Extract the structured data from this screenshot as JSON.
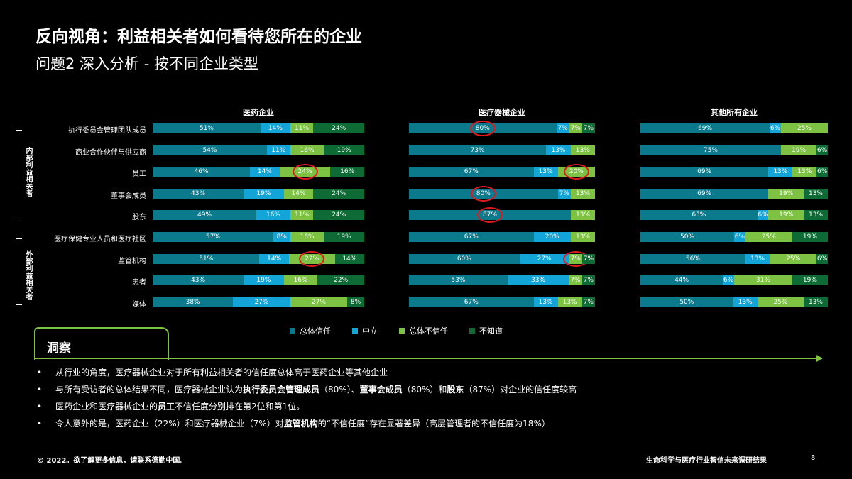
{
  "title": "反向视角：利益相关者如何看待您所在的企业",
  "subtitle": "问题2 深入分析 - 按不同企业类型",
  "colors": {
    "trust": "#0b7a8c",
    "neutral": "#13a4d8",
    "distrust": "#7dc242",
    "unknown": "#0f6b36",
    "highlight": "#e0191f"
  },
  "groups": [
    "内部利益相关者",
    "外部利益相关者"
  ],
  "chart_data": {
    "type": "bar",
    "stacked": true,
    "orientation": "horizontal",
    "categories": [
      "执行委员会管理团队成员",
      "商业合作伙伴与供应商",
      "员工",
      "董事会成员",
      "股东",
      "医疗保健专业人员和医疗社区",
      "监管机构",
      "患者",
      "媒体"
    ],
    "legend": [
      "总体信任",
      "中立",
      "总体不信任",
      "不知道"
    ],
    "legend_position": "bottom",
    "panels": [
      {
        "title": "医药企业",
        "values": [
          {
            "trust": 51,
            "neutral": 14,
            "distrust": 11,
            "unknown": 24
          },
          {
            "trust": 54,
            "neutral": 11,
            "distrust": 16,
            "unknown": 19
          },
          {
            "trust": 46,
            "neutral": 14,
            "distrust": 24,
            "unknown": 16,
            "hl": "distrust"
          },
          {
            "trust": 43,
            "neutral": 19,
            "distrust": 14,
            "unknown": 24
          },
          {
            "trust": 49,
            "neutral": 16,
            "distrust": 11,
            "unknown": 24
          },
          {
            "trust": 57,
            "neutral": 8,
            "distrust": 16,
            "unknown": 19
          },
          {
            "trust": 51,
            "neutral": 14,
            "distrust": 22,
            "unknown": 14,
            "hl": "distrust"
          },
          {
            "trust": 43,
            "neutral": 19,
            "distrust": 16,
            "unknown": 22
          },
          {
            "trust": 38,
            "neutral": 27,
            "distrust": 27,
            "unknown": 8
          }
        ]
      },
      {
        "title": "医疗器械企业",
        "values": [
          {
            "trust": 80,
            "neutral": 7,
            "distrust": 7,
            "unknown": 7,
            "hl": "trust"
          },
          {
            "trust": 73,
            "neutral": 13,
            "distrust": 13,
            "unknown": 0
          },
          {
            "trust": 67,
            "neutral": 13,
            "distrust": 20,
            "unknown": 0,
            "hl": "distrust"
          },
          {
            "trust": 80,
            "neutral": 7,
            "distrust": 13,
            "unknown": 0,
            "hl": "trust"
          },
          {
            "trust": 87,
            "neutral": 0,
            "distrust": 13,
            "unknown": 0,
            "hl": "trust"
          },
          {
            "trust": 67,
            "neutral": 20,
            "distrust": 13,
            "unknown": 0
          },
          {
            "trust": 60,
            "neutral": 27,
            "distrust": 7,
            "unknown": 7,
            "hl": "distrust"
          },
          {
            "trust": 53,
            "neutral": 33,
            "distrust": 7,
            "unknown": 7
          },
          {
            "trust": 67,
            "neutral": 13,
            "distrust": 13,
            "unknown": 7
          }
        ]
      },
      {
        "title": "其他所有企业",
        "values": [
          {
            "trust": 69,
            "neutral": 6,
            "distrust": 25,
            "unknown": 0
          },
          {
            "trust": 75,
            "neutral": 0,
            "distrust": 19,
            "unknown": 6
          },
          {
            "trust": 69,
            "neutral": 13,
            "distrust": 13,
            "unknown": 6
          },
          {
            "trust": 69,
            "neutral": 0,
            "distrust": 19,
            "unknown": 13
          },
          {
            "trust": 63,
            "neutral": 6,
            "distrust": 19,
            "unknown": 13
          },
          {
            "trust": 50,
            "neutral": 6,
            "distrust": 25,
            "unknown": 19
          },
          {
            "trust": 56,
            "neutral": 13,
            "distrust": 25,
            "unknown": 6
          },
          {
            "trust": 44,
            "neutral": 6,
            "distrust": 31,
            "unknown": 19
          },
          {
            "trust": 50,
            "neutral": 13,
            "distrust": 25,
            "unknown": 13
          }
        ]
      }
    ]
  },
  "insights": {
    "title": "洞察",
    "bullets": [
      [
        {
          "t": "从行业的角度，医疗器械企业对于所有利益相关者的信任度总体高于医药企业等其他企业"
        }
      ],
      [
        {
          "t": "与所有受访者的总体结果不同，医疗器械企业认为"
        },
        {
          "t": "执行委员会管理成员",
          "b": true
        },
        {
          "t": "（80%）、"
        },
        {
          "t": "董事会成员",
          "b": true
        },
        {
          "t": "（80%）和"
        },
        {
          "t": "股东",
          "b": true
        },
        {
          "t": "（87%）对企业的信任度较高"
        }
      ],
      [
        {
          "t": "医药企业和医疗器械企业的"
        },
        {
          "t": "员工",
          "b": true
        },
        {
          "t": "不信任度分别排在第2位和第1位。"
        }
      ],
      [
        {
          "t": "令人意外的是，医药企业（22%）和医疗器械企业（7%）对"
        },
        {
          "t": "监管机构",
          "b": true
        },
        {
          "t": "的“不信任度”存在显著差异（高层管理者的不信任度为18%）"
        }
      ]
    ]
  },
  "footer": {
    "left": "© 2022。欲了解更多信息，请联系德勤中国。",
    "right": "生命科学与医疗行业智信未来调研结果",
    "page": "8"
  }
}
